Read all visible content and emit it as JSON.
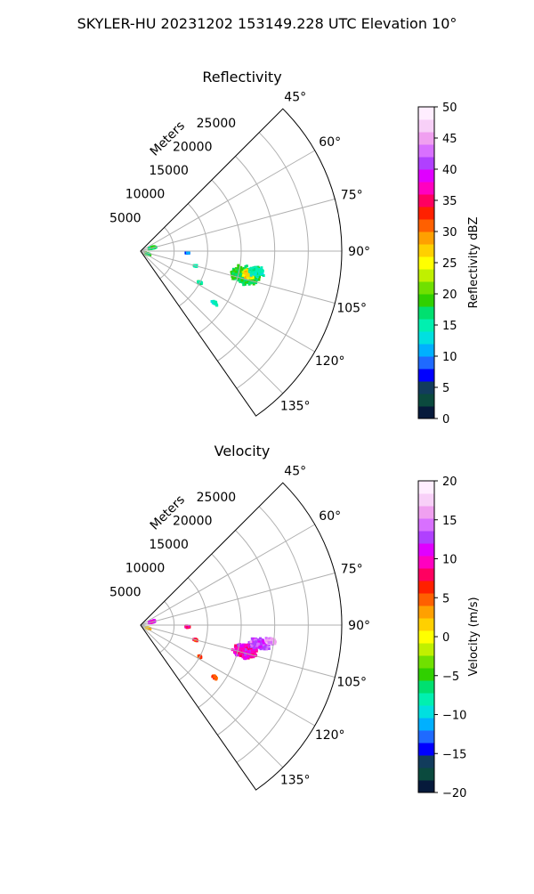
{
  "figure": {
    "suptitle": "SKYLER-HU  20231202  153149.228 UTC Elevation 10°"
  },
  "chart_data": [
    {
      "type": "heatmap",
      "projection": "polar-sector",
      "title": "Reflectivity",
      "radial_label": "Meters",
      "radial_ticks": [
        5000,
        10000,
        15000,
        20000,
        25000
      ],
      "radial_tick_labels": [
        "5000",
        "10000",
        "15000",
        "20000",
        "25000"
      ],
      "radial_range": [
        0,
        30000
      ],
      "azimuth_range_deg": [
        45,
        145
      ],
      "azimuth_ticks": [
        45,
        60,
        75,
        90,
        105,
        120,
        135
      ],
      "azimuth_tick_labels": [
        "45°",
        "60°",
        "75°",
        "90°",
        "105°",
        "120°",
        "135°"
      ],
      "grid": true,
      "colorbar": {
        "label": "Reflectivity dBZ",
        "range": [
          0,
          50
        ],
        "ticks": [
          0,
          5,
          10,
          15,
          20,
          25,
          30,
          35,
          40,
          45,
          50
        ],
        "tick_labels": [
          "0",
          "5",
          "10",
          "15",
          "20",
          "25",
          "30",
          "35",
          "40",
          "45",
          "50"
        ],
        "colors": [
          "#061a3b",
          "#0b4a3e",
          "#123c5c",
          "#0000ff",
          "#1f6aff",
          "#00b0ff",
          "#00e0e0",
          "#00f0b0",
          "#00e070",
          "#30d000",
          "#70e000",
          "#c0f000",
          "#ffff00",
          "#ffd000",
          "#ffa000",
          "#ff6000",
          "#ff2000",
          "#ff0060",
          "#ff00c0",
          "#e000ff",
          "#b040ff",
          "#d870ff",
          "#f0a0f0",
          "#f8d0f8",
          "#ffeeff"
        ]
      },
      "echoes": [
        {
          "az": 103,
          "r": 16000,
          "value": 18,
          "spread_az": 5.5,
          "spread_r": 2600,
          "n": 900
        },
        {
          "az": 102,
          "r": 16500,
          "value": 26,
          "spread_az": 2.5,
          "spread_r": 1200,
          "n": 280
        },
        {
          "az": 100,
          "r": 17500,
          "value": 15,
          "spread_az": 3.0,
          "spread_r": 1600,
          "n": 260
        },
        {
          "az": 74,
          "r": 1800,
          "value": 17,
          "spread_az": 5,
          "spread_r": 700,
          "n": 200
        },
        {
          "az": 92,
          "r": 7000,
          "value": 9,
          "spread_az": 1.5,
          "spread_r": 400,
          "n": 60
        },
        {
          "az": 105,
          "r": 8500,
          "value": 15,
          "spread_az": 1.2,
          "spread_r": 400,
          "n": 30
        },
        {
          "az": 118,
          "r": 10000,
          "value": 16,
          "spread_az": 1.5,
          "spread_r": 500,
          "n": 45
        },
        {
          "az": 125,
          "r": 13500,
          "value": 14,
          "spread_az": 1.5,
          "spread_r": 700,
          "n": 25
        },
        {
          "az": 112,
          "r": 1200,
          "value": 18,
          "spread_az": 4,
          "spread_r": 500,
          "n": 60
        }
      ]
    },
    {
      "type": "heatmap",
      "projection": "polar-sector",
      "title": "Velocity",
      "radial_label": "Meters",
      "radial_ticks": [
        5000,
        10000,
        15000,
        20000,
        25000
      ],
      "radial_tick_labels": [
        "5000",
        "10000",
        "15000",
        "20000",
        "25000"
      ],
      "radial_range": [
        0,
        30000
      ],
      "azimuth_range_deg": [
        45,
        145
      ],
      "azimuth_ticks": [
        45,
        60,
        75,
        90,
        105,
        120,
        135
      ],
      "azimuth_tick_labels": [
        "45°",
        "60°",
        "75°",
        "90°",
        "105°",
        "120°",
        "135°"
      ],
      "grid": true,
      "colorbar": {
        "label": "Velocity (m/s)",
        "range": [
          -20,
          20
        ],
        "ticks": [
          -20,
          -15,
          -10,
          -5,
          0,
          5,
          10,
          15,
          20
        ],
        "tick_labels": [
          "−20",
          "−15",
          "−10",
          "−5",
          "0",
          "5",
          "10",
          "15",
          "20"
        ],
        "colors": [
          "#061a3b",
          "#0b4a3e",
          "#123c5c",
          "#0000ff",
          "#1f6aff",
          "#00b0ff",
          "#00e0e0",
          "#00f0b0",
          "#00e070",
          "#30d000",
          "#70e000",
          "#c0f000",
          "#ffff00",
          "#ffd000",
          "#ffa000",
          "#ff6000",
          "#ff2000",
          "#ff0060",
          "#ff00c0",
          "#e000ff",
          "#b040ff",
          "#d870ff",
          "#f0a0f0",
          "#f8d0f8",
          "#ffeeff"
        ]
      },
      "echoes": [
        {
          "az": 104,
          "r": 16000,
          "value": 10,
          "spread_az": 4.5,
          "spread_r": 2200,
          "n": 700
        },
        {
          "az": 99,
          "r": 18000,
          "value": 13,
          "spread_az": 3.0,
          "spread_r": 1800,
          "n": 450
        },
        {
          "az": 97,
          "r": 19500,
          "value": 16,
          "spread_az": 1.8,
          "spread_r": 1000,
          "n": 160
        },
        {
          "az": 74,
          "r": 1800,
          "value": 11,
          "spread_az": 5,
          "spread_r": 700,
          "n": 200
        },
        {
          "az": 92,
          "r": 7000,
          "value": 8,
          "spread_az": 1.5,
          "spread_r": 400,
          "n": 60
        },
        {
          "az": 105,
          "r": 8500,
          "value": 7,
          "spread_az": 1.2,
          "spread_r": 400,
          "n": 30
        },
        {
          "az": 118,
          "r": 10000,
          "value": 6,
          "spread_az": 1.5,
          "spread_r": 500,
          "n": 45
        },
        {
          "az": 125,
          "r": 13500,
          "value": 5,
          "spread_az": 1.5,
          "spread_r": 700,
          "n": 25
        },
        {
          "az": 112,
          "r": 1200,
          "value": 2,
          "spread_az": 4,
          "spread_r": 500,
          "n": 60
        }
      ]
    }
  ]
}
